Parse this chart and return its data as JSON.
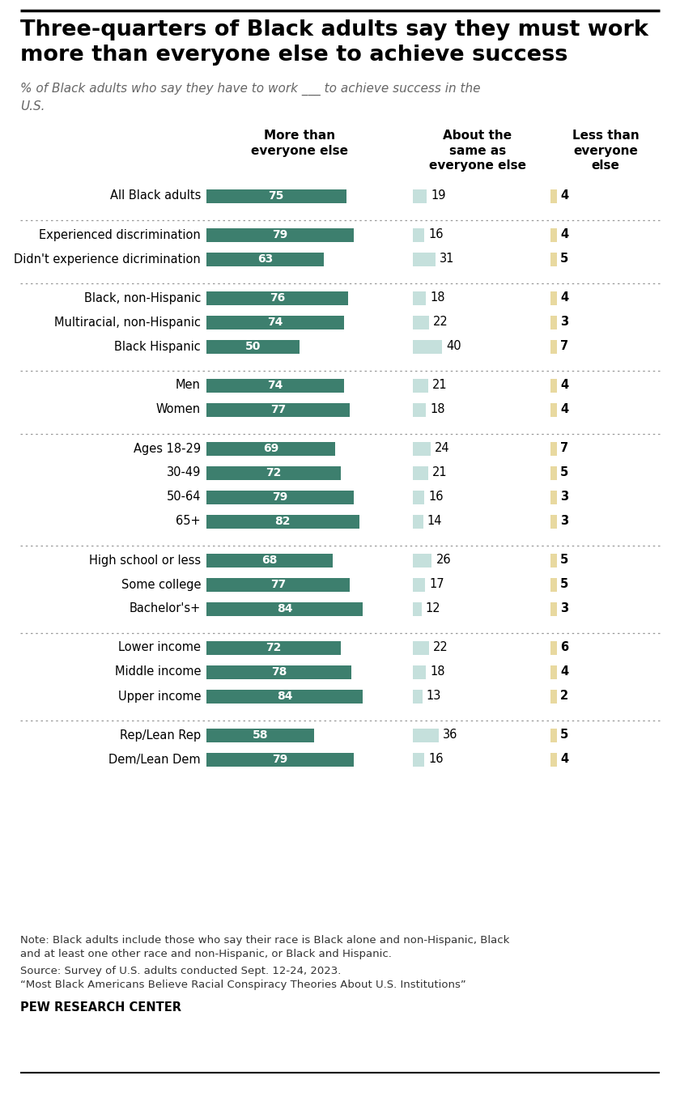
{
  "title": "Three-quarters of Black adults say they must work\nmore than everyone else to achieve success",
  "subtitle": "% of Black adults who say they have to work ___ to achieve success in the\nU.S.",
  "col_headers": [
    "More than\neveryone else",
    "About the\nsame as\neveryone else",
    "Less than\neveryone\nelse"
  ],
  "categories": [
    "All Black adults",
    "Experienced discrimination",
    "Didn't experience dicrimination",
    "Black, non-Hispanic",
    "Multiracial, non-Hispanic",
    "Black Hispanic",
    "Men",
    "Women",
    "Ages 18-29",
    "30-49",
    "50-64",
    "65+",
    "High school or less",
    "Some college",
    "Bachelor's+",
    "Lower income",
    "Middle income",
    "Upper income",
    "Rep/Lean Rep",
    "Dem/Lean Dem"
  ],
  "more_than": [
    75,
    79,
    63,
    76,
    74,
    50,
    74,
    77,
    69,
    72,
    79,
    82,
    68,
    77,
    84,
    72,
    78,
    84,
    58,
    79
  ],
  "about_same": [
    19,
    16,
    31,
    18,
    22,
    40,
    21,
    18,
    24,
    21,
    16,
    14,
    26,
    17,
    12,
    22,
    18,
    13,
    36,
    16
  ],
  "less_than": [
    4,
    4,
    5,
    4,
    3,
    7,
    4,
    4,
    7,
    5,
    3,
    3,
    5,
    5,
    3,
    6,
    4,
    2,
    5,
    4
  ],
  "groups": [
    [
      0
    ],
    [
      1,
      2
    ],
    [
      3,
      4,
      5
    ],
    [
      6,
      7
    ],
    [
      8,
      9,
      10,
      11
    ],
    [
      12,
      13,
      14
    ],
    [
      15,
      16,
      17
    ],
    [
      18,
      19
    ]
  ],
  "color_more": "#3d7f6e",
  "color_same": "#c5e0dc",
  "color_less": "#e8d9a0",
  "note_line1": "Note: Black adults include those who say their race is Black alone and non-Hispanic, Black",
  "note_line2": "and at least one other race and non-Hispanic, or Black and Hispanic.",
  "source_line1": "Source: Survey of U.S. adults conducted Sept. 12-24, 2023.",
  "source_line2": "“Most Black Americans Believe Racial Conspiracy Theories About U.S. Institutions”",
  "institution": "PEW RESEARCH CENTER",
  "bg_color": "#f9f6f0"
}
